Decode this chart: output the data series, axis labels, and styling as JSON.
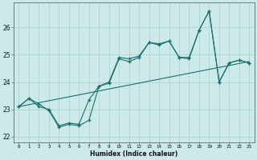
{
  "xlabel": "Humidex (Indice chaleur)",
  "ylabel": "",
  "background_color": "#cdeaea",
  "grid_color": "#aed4d4",
  "line_color": "#1a6e6e",
  "xlim": [
    -0.5,
    23.5
  ],
  "ylim": [
    21.8,
    26.9
  ],
  "yticks": [
    22,
    23,
    24,
    25,
    26
  ],
  "xticks": [
    0,
    1,
    2,
    3,
    4,
    5,
    6,
    7,
    8,
    9,
    10,
    11,
    12,
    13,
    14,
    15,
    16,
    17,
    18,
    19,
    20,
    21,
    22,
    23
  ],
  "series1": [
    23.1,
    23.4,
    23.1,
    23.0,
    22.4,
    22.5,
    22.45,
    23.35,
    23.85,
    24.0,
    24.9,
    24.85,
    24.95,
    25.45,
    25.4,
    25.5,
    24.9,
    24.9,
    25.9,
    26.6,
    24.0,
    24.7,
    24.8,
    24.7
  ],
  "series2": [
    23.1,
    23.4,
    23.2,
    22.95,
    22.35,
    22.45,
    22.4,
    22.6,
    23.85,
    23.95,
    24.85,
    24.75,
    24.9,
    25.45,
    25.35,
    25.5,
    24.9,
    24.85,
    25.9,
    26.6,
    24.0,
    24.7,
    24.8,
    24.7
  ],
  "series3_x": [
    0,
    23
  ],
  "series3_y": [
    23.1,
    24.75
  ]
}
